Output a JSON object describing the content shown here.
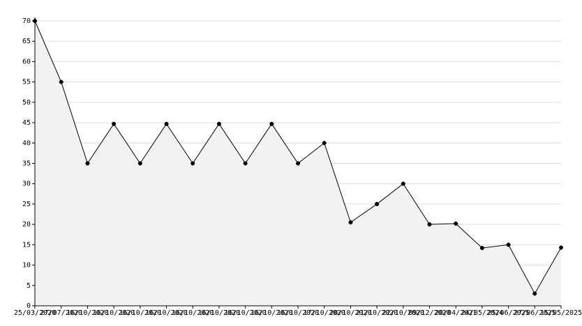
{
  "chart_data": {
    "type": "area-line",
    "categories": [
      "25/03/2020",
      "27/07/2020",
      "16/10/2020",
      "16/10/2020",
      "16/10/2020",
      "16/10/2020",
      "16/10/2020",
      "16/10/2020",
      "16/10/2020",
      "16/10/2020",
      "16/10/2020",
      "17/10/2020",
      "20/10/2020",
      "21/10/2020",
      "22/10/2020",
      "09/12/2020",
      "20/04/2021",
      "24/05/2024",
      "25/06/2025",
      "27/06/2025",
      "15/05/2025"
    ],
    "values": [
      70,
      55,
      35,
      44.7,
      35,
      44.7,
      35,
      44.7,
      35,
      44.7,
      35,
      40,
      20.5,
      25,
      30,
      20,
      20.2,
      14.2,
      15,
      3,
      14.3
    ],
    "color": "#000000",
    "fill": "#f2f2f2",
    "ylim": [
      0,
      70
    ],
    "yticks": [
      0,
      5,
      10,
      15,
      20,
      25,
      30,
      35,
      40,
      45,
      50,
      55,
      60,
      65,
      70
    ],
    "grid": true
  }
}
